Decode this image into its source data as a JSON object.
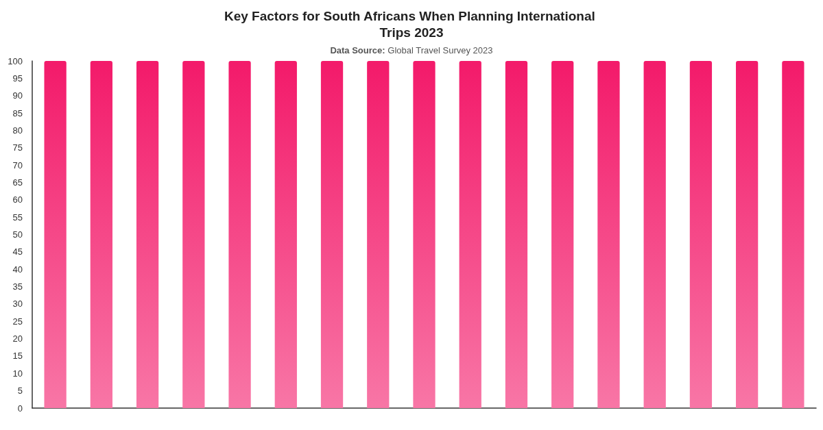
{
  "chart_data": {
    "type": "bar",
    "title": "Key Factors for South Africans When Planning International Trips 2023",
    "subtitle": "Data Source: Global Travel Survey 2023",
    "categories": [
      null,
      null,
      null,
      null,
      null,
      null,
      null,
      null,
      null,
      null,
      null,
      null,
      null,
      null,
      null,
      null,
      null
    ],
    "values": [
      100,
      100,
      100,
      100,
      100,
      100,
      100,
      100,
      100,
      100,
      100,
      100,
      100,
      100,
      100,
      100,
      100
    ],
    "color": "#f31a6a",
    "ylim": [
      0,
      100
    ],
    "yticks": [
      0,
      5,
      10,
      15,
      20,
      25,
      30,
      35,
      40,
      45,
      50,
      55,
      60,
      65,
      70,
      75,
      80,
      85,
      90,
      95,
      100
    ],
    "grid": false
  }
}
